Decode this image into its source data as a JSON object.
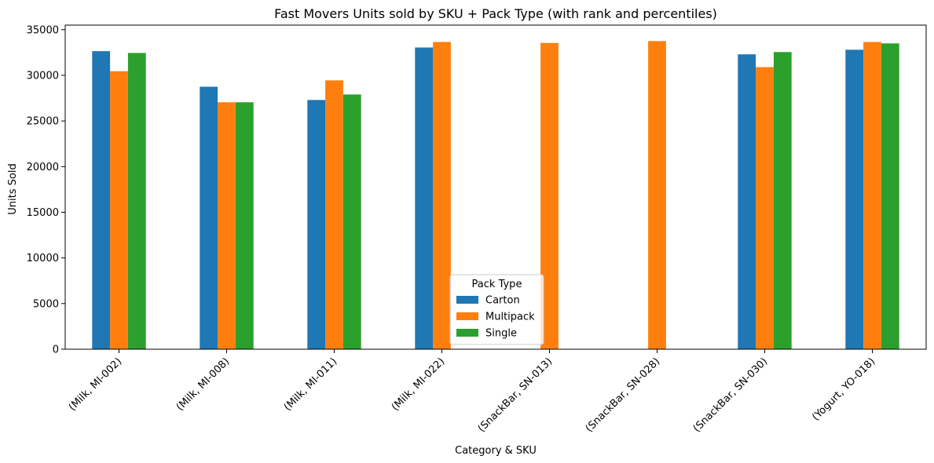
{
  "chart_data": {
    "type": "bar",
    "title": "Fast Movers Units sold by SKU + Pack Type (with rank and percentiles)",
    "xlabel": "Category & SKU",
    "ylabel": "Units Sold",
    "categories": [
      "(Milk, MI-002)",
      "(Milk, MI-008)",
      "(Milk, MI-011)",
      "(Milk, MI-022)",
      "(SnackBar, SN-013)",
      "(SnackBar, SN-028)",
      "(SnackBar, SN-030)",
      "(Yogurt, YO-018)"
    ],
    "series": [
      {
        "name": "Carton",
        "color": "#1f77b4",
        "values": [
          32650,
          28750,
          27300,
          33050,
          null,
          null,
          32300,
          32800
        ]
      },
      {
        "name": "Multipack",
        "color": "#ff7f0e",
        "values": [
          30450,
          27050,
          29450,
          33650,
          33550,
          33750,
          30900,
          33650
        ]
      },
      {
        "name": "Single",
        "color": "#2ca02c",
        "values": [
          32450,
          27050,
          27900,
          0,
          null,
          null,
          32550,
          33500
        ]
      }
    ],
    "ylim": [
      0,
      35500
    ],
    "yticks": [
      0,
      5000,
      10000,
      15000,
      20000,
      25000,
      30000,
      35000
    ],
    "grid": false,
    "legend": {
      "title": "Pack Type",
      "placement": "lower-center"
    }
  }
}
